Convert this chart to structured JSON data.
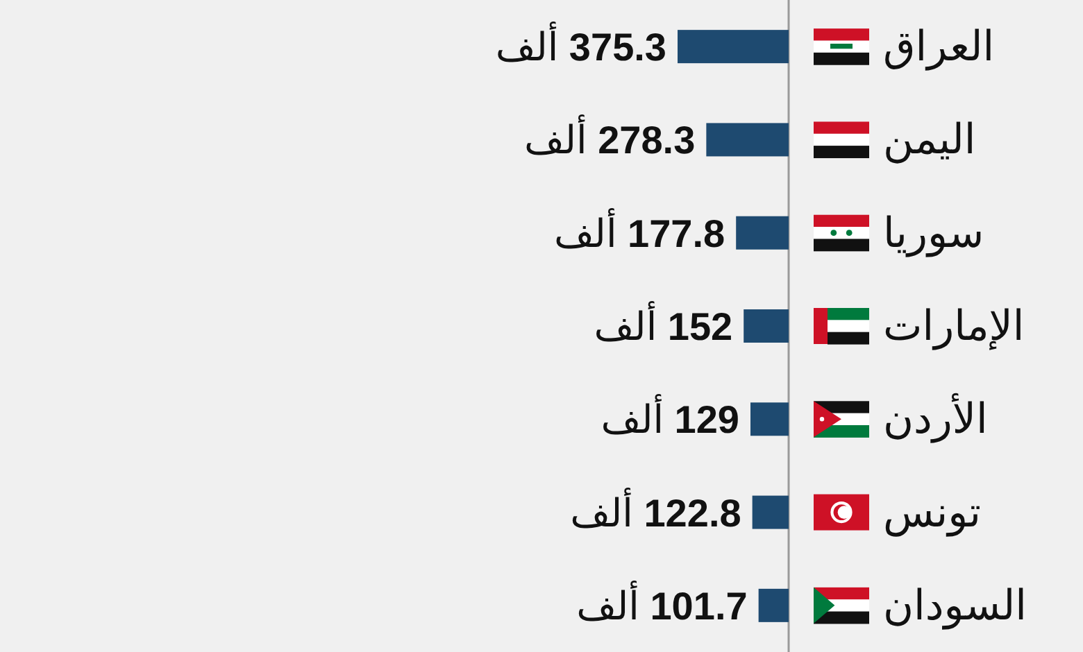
{
  "chart_data": {
    "type": "bar",
    "orientation": "horizontal",
    "categories": [
      "العراق",
      "اليمن",
      "سوريا",
      "الإمارات",
      "الأردن",
      "تونس",
      "السودان"
    ],
    "values": [
      375.3,
      278.3,
      177.8,
      152,
      129,
      122.8,
      101.7
    ],
    "value_labels": [
      "375.3 ألف",
      "278.3 ألف",
      "177.8 ألف",
      "152 ألف",
      "129 ألف",
      "122.8 ألف",
      "101.7 ألف"
    ],
    "color": "#1e4a70"
  }
}
